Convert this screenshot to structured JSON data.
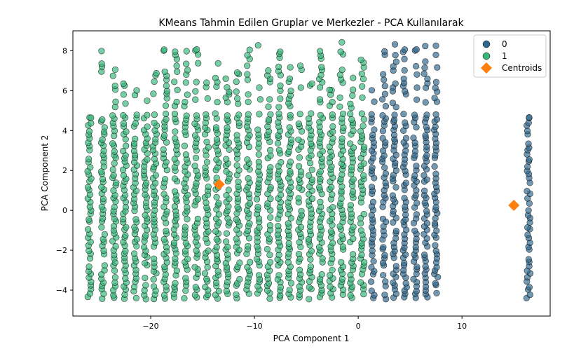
{
  "chart_data": {
    "type": "scatter",
    "title": "KMeans Tahmin Edilen Gruplar ve Merkezler - PCA Kullanılarak",
    "xlabel": "PCA Component 1",
    "ylabel": "PCA Component 2",
    "xlim": [
      -27.5,
      18.5
    ],
    "ylim": [
      -5.3,
      9.0
    ],
    "xticks": [
      -20,
      -10,
      0,
      10
    ],
    "yticks": [
      -4,
      -2,
      0,
      2,
      4,
      6,
      8
    ],
    "grid": false,
    "legend_position": "top-right",
    "legend": [
      {
        "label": "0",
        "color": "#30688e",
        "marker": "circle"
      },
      {
        "label": "1",
        "color": "#35b779",
        "marker": "circle"
      },
      {
        "label": "Centroids",
        "color": "#ff7f0e",
        "marker": "diamond"
      }
    ],
    "series": [
      {
        "name": "0",
        "color": "#30688e",
        "x_columns": [
          1.4,
          2.5,
          3.5,
          4.5,
          5.5,
          6.5,
          7.5,
          16.4
        ],
        "column_y_max": [
          6.0,
          8.0,
          8.3,
          8.1,
          8.1,
          8.2,
          8.2,
          4.7
        ],
        "y_min": -4.4
      },
      {
        "name": "1",
        "color": "#35b779",
        "x_columns": [
          -25.9,
          -24.6,
          -23.5,
          -22.5,
          -21.5,
          -20.5,
          -19.6,
          -18.6,
          -17.6,
          -16.6,
          -15.6,
          -14.6,
          -13.6,
          -12.6,
          -11.6,
          -10.6,
          -9.6,
          -8.6,
          -7.6,
          -6.6,
          -5.6,
          -4.6,
          -3.6,
          -2.6,
          -1.6,
          -0.6,
          0.4
        ],
        "column_y_max": [
          4.7,
          8.0,
          7.0,
          6.4,
          6.0,
          5.5,
          6.9,
          8.1,
          7.9,
          8.0,
          8.1,
          6.4,
          7.4,
          6.6,
          6.9,
          8.1,
          8.3,
          7.0,
          8.0,
          7.2,
          7.3,
          6.3,
          8.0,
          6.1,
          8.4,
          6.6,
          7.6
        ],
        "y_min": -4.4
      },
      {
        "name": "Centroids",
        "color": "#ff7f0e",
        "marker": "diamond",
        "points": [
          [
            -13.4,
            1.3
          ],
          [
            15.0,
            0.25
          ]
        ]
      }
    ]
  }
}
